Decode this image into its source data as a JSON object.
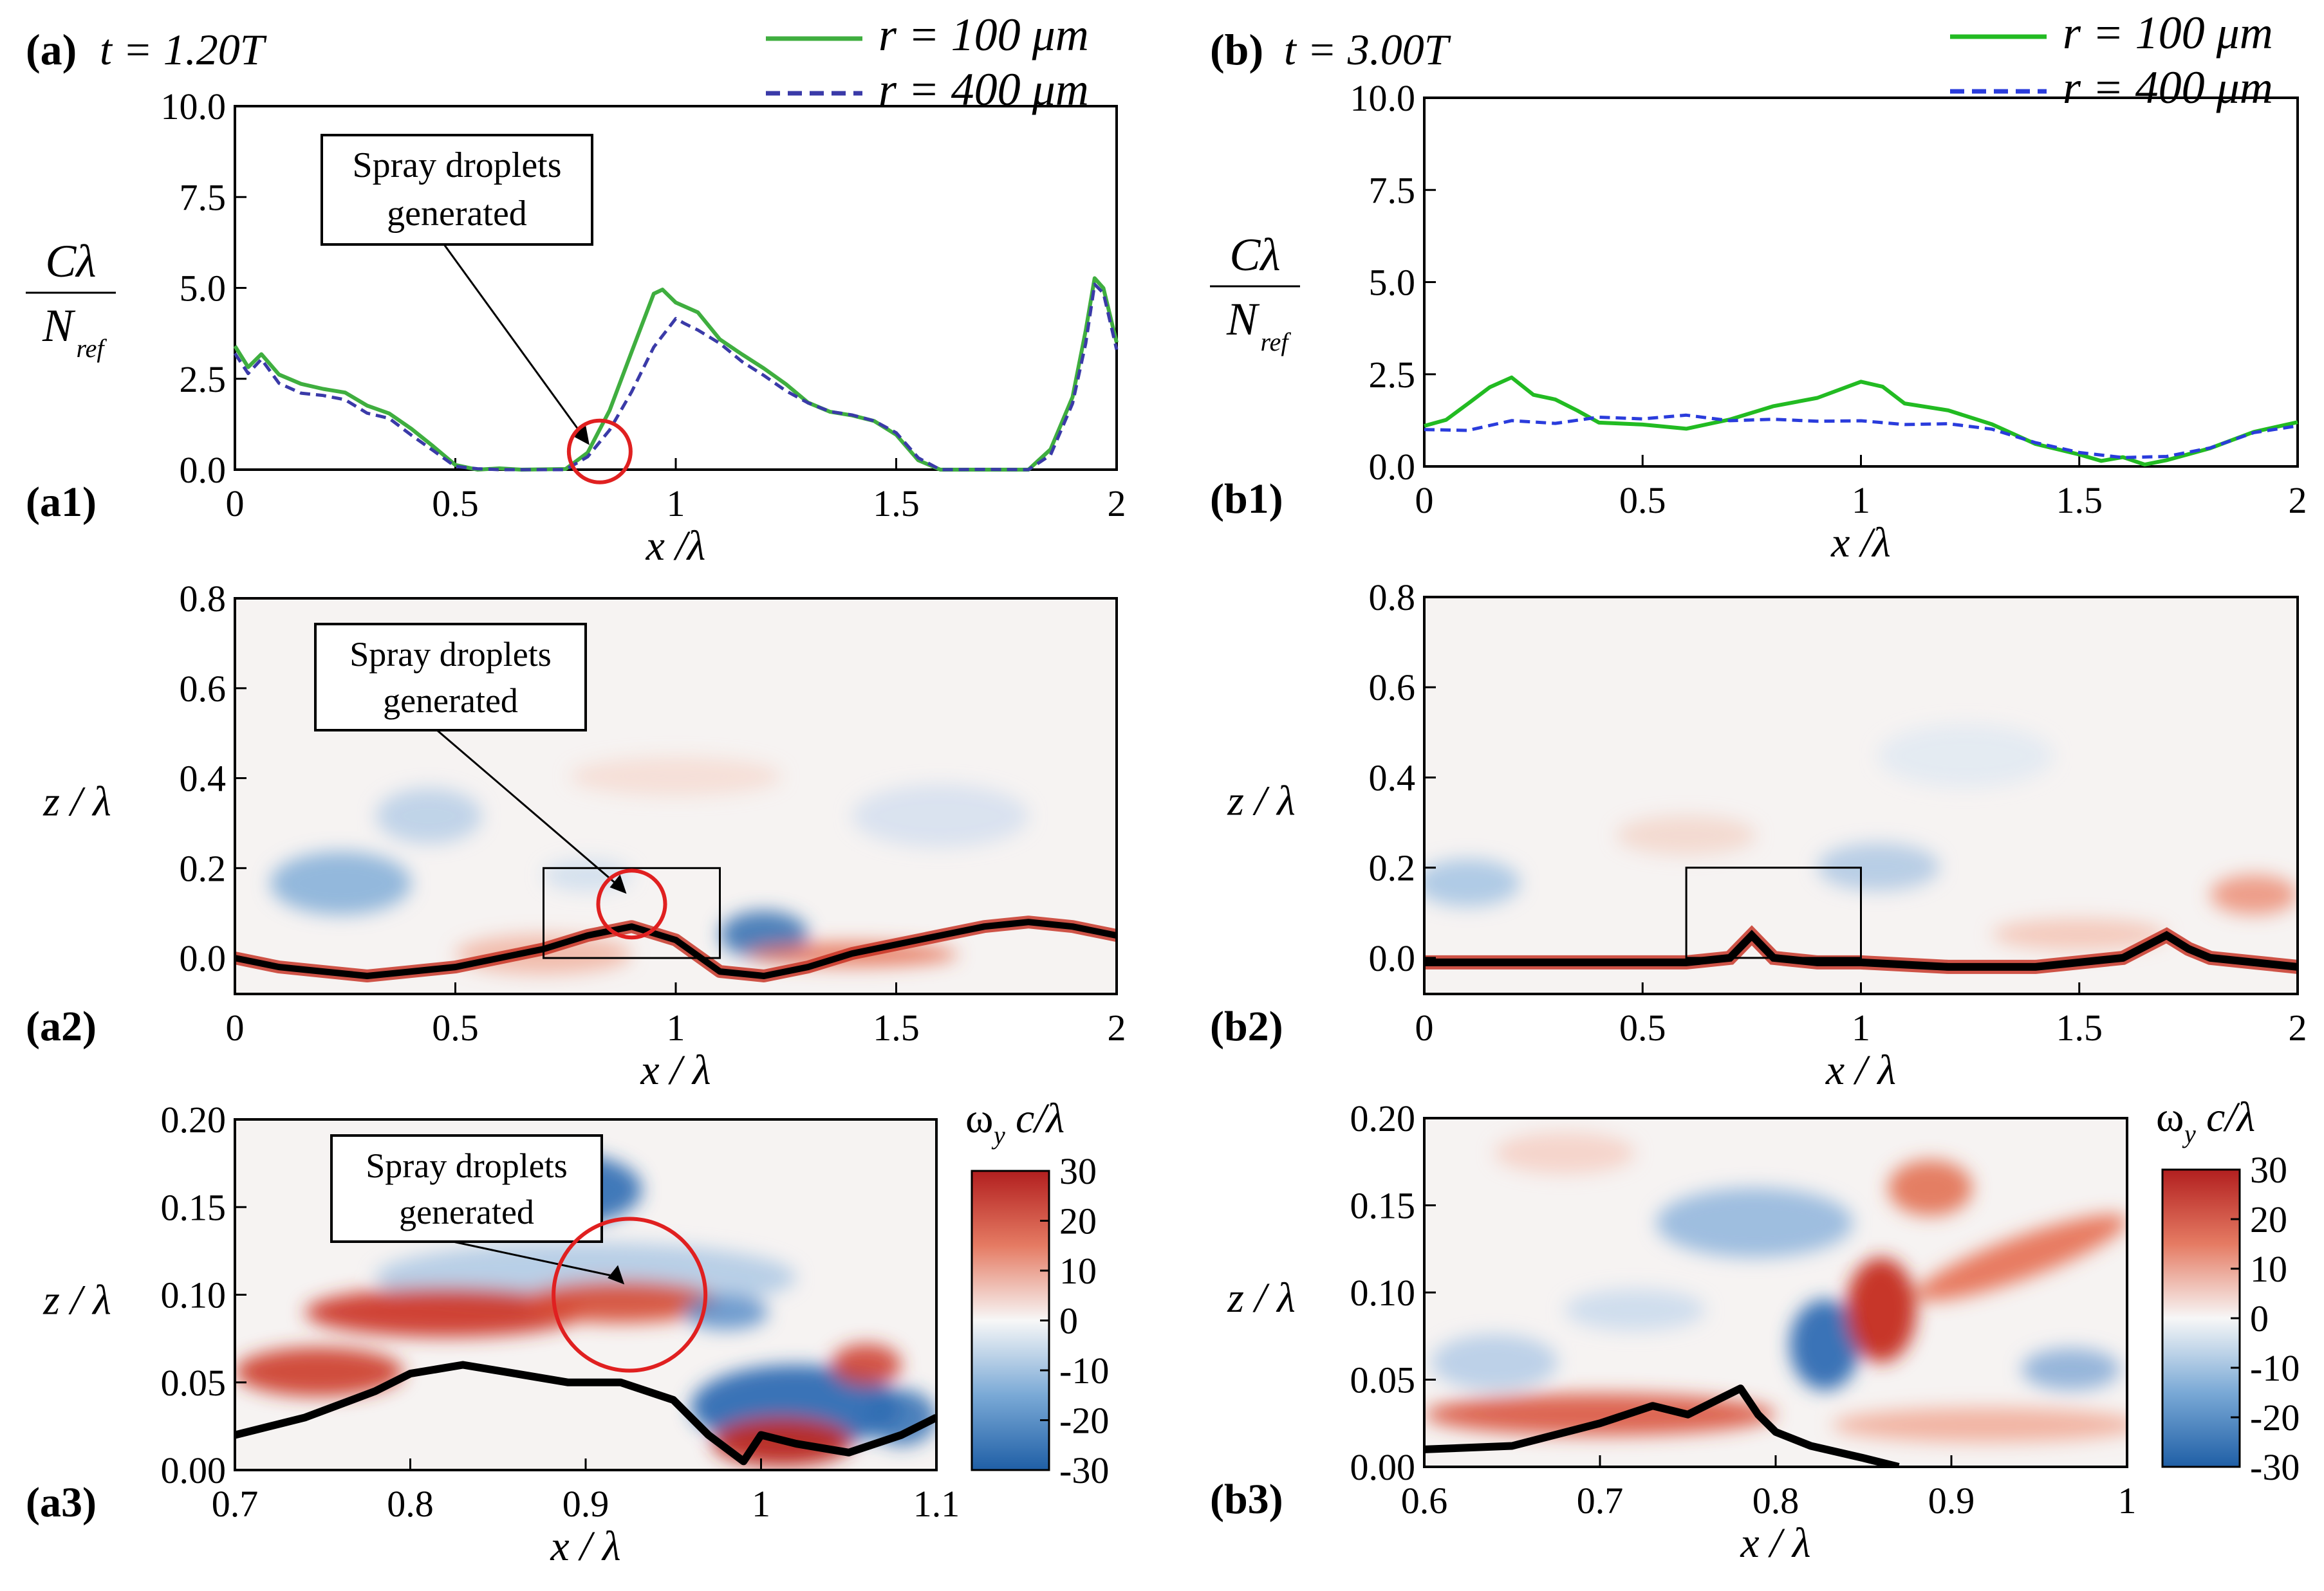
{
  "chart_data": [
    {
      "id": "a1",
      "type": "line",
      "panel_label": "(a1)",
      "header": {
        "letter": "(a)",
        "time": "t = 1.20T"
      },
      "ylabel": {
        "num": "Cλ",
        "den_main": "N",
        "den_sub": "ref"
      },
      "xlabel": "x /λ",
      "xlim": [
        0,
        2
      ],
      "ylim": [
        0,
        10
      ],
      "xticks": [
        "0",
        "0.5",
        "1",
        "1.5",
        "2"
      ],
      "yticks": [
        "0.0",
        "2.5",
        "5.0",
        "7.5",
        "10.0"
      ],
      "annotation": {
        "lines": [
          "Spray droplets",
          "generated"
        ],
        "target": [
          0.81,
          0.5
        ]
      },
      "series": [
        {
          "name": "r = 100 μm",
          "color": "#3fae3f",
          "style": "solid",
          "x": [
            0,
            0.03,
            0.06,
            0.1,
            0.15,
            0.2,
            0.25,
            0.3,
            0.35,
            0.4,
            0.45,
            0.5,
            0.55,
            0.6,
            0.65,
            0.7,
            0.75,
            0.8,
            0.85,
            0.9,
            0.95,
            0.97,
            1.0,
            1.05,
            1.1,
            1.15,
            1.2,
            1.25,
            1.3,
            1.35,
            1.4,
            1.45,
            1.5,
            1.55,
            1.6,
            1.7,
            1.8,
            1.85,
            1.9,
            1.93,
            1.95,
            1.97,
            2.0
          ],
          "y": [
            3.4,
            2.8,
            3.2,
            2.6,
            2.3,
            2.2,
            2.1,
            1.8,
            1.5,
            1.1,
            0.6,
            0.1,
            0.0,
            0.0,
            0.0,
            0.0,
            0.05,
            0.5,
            1.6,
            3.2,
            4.8,
            5.0,
            4.6,
            4.3,
            3.6,
            3.2,
            2.8,
            2.3,
            1.8,
            1.6,
            1.5,
            1.3,
            1.0,
            0.3,
            0.0,
            0.0,
            0.0,
            0.5,
            2.0,
            3.8,
            5.3,
            5.0,
            3.5
          ]
        },
        {
          "name": "r = 400 μm",
          "color": "#3a3aa8",
          "style": "dashed",
          "x": [
            0,
            0.03,
            0.06,
            0.1,
            0.15,
            0.2,
            0.25,
            0.3,
            0.35,
            0.4,
            0.45,
            0.5,
            0.55,
            0.6,
            0.65,
            0.7,
            0.75,
            0.8,
            0.85,
            0.9,
            0.95,
            1.0,
            1.02,
            1.05,
            1.1,
            1.15,
            1.2,
            1.25,
            1.3,
            1.35,
            1.4,
            1.45,
            1.5,
            1.55,
            1.6,
            1.7,
            1.8,
            1.85,
            1.9,
            1.93,
            1.95,
            1.97,
            2.0
          ],
          "y": [
            3.2,
            2.6,
            3.0,
            2.4,
            2.1,
            2.0,
            1.9,
            1.6,
            1.4,
            1.0,
            0.5,
            0.1,
            0.0,
            0.0,
            0.0,
            0.0,
            0.0,
            0.3,
            1.1,
            2.2,
            3.4,
            4.2,
            4.0,
            3.9,
            3.5,
            3.0,
            2.6,
            2.2,
            1.8,
            1.6,
            1.5,
            1.3,
            1.0,
            0.3,
            0.0,
            0.0,
            0.0,
            0.4,
            1.8,
            3.5,
            5.1,
            4.8,
            3.3
          ]
        }
      ]
    },
    {
      "id": "b1",
      "type": "line",
      "panel_label": "(b1)",
      "header": {
        "letter": "(b)",
        "time": "t = 3.00T"
      },
      "ylabel": {
        "num": "Cλ",
        "den_main": "N",
        "den_sub": "ref"
      },
      "xlabel": "x /λ",
      "xlim": [
        0,
        2
      ],
      "ylim": [
        0,
        10
      ],
      "xticks": [
        "0",
        "0.5",
        "1",
        "1.5",
        "2"
      ],
      "yticks": [
        "0.0",
        "2.5",
        "5.0",
        "7.5",
        "10.0"
      ],
      "series": [
        {
          "name": "r = 100 μm",
          "color": "#22bb22",
          "style": "solid",
          "x": [
            0,
            0.05,
            0.1,
            0.15,
            0.2,
            0.25,
            0.3,
            0.35,
            0.4,
            0.5,
            0.6,
            0.7,
            0.8,
            0.9,
            1.0,
            1.05,
            1.1,
            1.2,
            1.3,
            1.4,
            1.5,
            1.55,
            1.6,
            1.65,
            1.7,
            1.8,
            1.9,
            2.0
          ],
          "y": [
            1.1,
            1.3,
            1.7,
            2.1,
            2.4,
            2.0,
            1.8,
            1.5,
            1.2,
            1.1,
            1.0,
            1.3,
            1.6,
            1.8,
            2.3,
            2.2,
            1.7,
            1.5,
            1.1,
            0.6,
            0.3,
            0.2,
            0.2,
            0.1,
            0.2,
            0.5,
            0.9,
            1.2
          ]
        },
        {
          "name": "r = 400 μm",
          "color": "#2a3cdc",
          "style": "dashed",
          "x": [
            0,
            0.1,
            0.2,
            0.3,
            0.4,
            0.5,
            0.6,
            0.7,
            0.8,
            0.9,
            1.0,
            1.1,
            1.2,
            1.3,
            1.4,
            1.5,
            1.6,
            1.7,
            1.8,
            1.9,
            2.0
          ],
          "y": [
            1.0,
            1.0,
            1.2,
            1.2,
            1.3,
            1.3,
            1.4,
            1.3,
            1.3,
            1.2,
            1.2,
            1.1,
            1.1,
            1.0,
            0.6,
            0.4,
            0.3,
            0.3,
            0.5,
            0.9,
            1.1
          ]
        }
      ]
    },
    {
      "id": "a2",
      "type": "heatmap",
      "panel_label": "(a2)",
      "xlabel": "x / λ",
      "ylabel": "z / λ",
      "xlim": [
        0,
        2
      ],
      "ylim": [
        -0.08,
        0.8
      ],
      "xticks": [
        "0",
        "0.5",
        "1",
        "1.5",
        "2"
      ],
      "yticks": [
        "0.0",
        "0.2",
        "0.4",
        "0.6",
        "0.8"
      ],
      "annotation": {
        "lines": [
          "Spray droplets",
          "generated"
        ],
        "target": [
          0.9,
          0.12
        ]
      },
      "surface": {
        "x": [
          0,
          0.1,
          0.2,
          0.3,
          0.4,
          0.5,
          0.6,
          0.7,
          0.8,
          0.9,
          1.0,
          1.1,
          1.2,
          1.3,
          1.4,
          1.5,
          1.6,
          1.7,
          1.8,
          1.9,
          2.0
        ],
        "z": [
          0.0,
          -0.02,
          -0.03,
          -0.04,
          -0.03,
          -0.02,
          0.0,
          0.02,
          0.05,
          0.07,
          0.04,
          -0.03,
          -0.04,
          -0.02,
          0.01,
          0.03,
          0.05,
          0.07,
          0.08,
          0.07,
          0.05
        ]
      },
      "zoom_box": {
        "x": [
          0.7,
          1.1
        ],
        "z": [
          0.0,
          0.2
        ]
      }
    },
    {
      "id": "b2",
      "type": "heatmap",
      "panel_label": "(b2)",
      "xlabel": "x / λ",
      "ylabel": "z / λ",
      "xlim": [
        0,
        2
      ],
      "ylim": [
        -0.08,
        0.8
      ],
      "xticks": [
        "0",
        "0.5",
        "1",
        "1.5",
        "2"
      ],
      "yticks": [
        "0.0",
        "0.2",
        "0.4",
        "0.6",
        "0.8"
      ],
      "surface": {
        "x": [
          0,
          0.2,
          0.4,
          0.6,
          0.7,
          0.75,
          0.8,
          0.9,
          1.0,
          1.2,
          1.4,
          1.6,
          1.7,
          1.75,
          1.8,
          1.9,
          2.0
        ],
        "z": [
          -0.01,
          -0.01,
          -0.01,
          -0.01,
          0.0,
          0.05,
          0.0,
          -0.01,
          -0.01,
          -0.02,
          -0.02,
          0.0,
          0.05,
          0.02,
          0.0,
          -0.01,
          -0.02
        ]
      },
      "zoom_box": {
        "x": [
          0.6,
          1.0
        ],
        "z": [
          0.0,
          0.2
        ]
      }
    },
    {
      "id": "a3",
      "type": "heatmap",
      "panel_label": "(a3)",
      "xlabel": "x / λ",
      "ylabel": "z / λ",
      "xlim": [
        0.7,
        1.1
      ],
      "ylim": [
        0,
        0.2
      ],
      "xticks": [
        "0.7",
        "0.8",
        "0.9",
        "1",
        "1.1"
      ],
      "yticks": [
        "0.00",
        "0.05",
        "0.10",
        "0.15",
        "0.20"
      ],
      "annotation": {
        "lines": [
          "Spray droplets",
          "generated"
        ],
        "target": [
          0.925,
          0.1
        ]
      },
      "colorbar": {
        "label_main": "ω",
        "label_sub": "y",
        "label_rest": "c/λ",
        "range": [
          -30,
          30
        ],
        "ticks": [
          "30",
          "20",
          "10",
          "0",
          "-10",
          "-20",
          "-30"
        ]
      }
    },
    {
      "id": "b3",
      "type": "heatmap",
      "panel_label": "(b3)",
      "xlabel": "x / λ",
      "ylabel": "z / λ",
      "xlim": [
        0.6,
        1.0
      ],
      "ylim": [
        0,
        0.2
      ],
      "xticks": [
        "0.6",
        "0.7",
        "0.8",
        "0.9",
        "1"
      ],
      "yticks": [
        "0.00",
        "0.05",
        "0.10",
        "0.15",
        "0.20"
      ],
      "colorbar": {
        "label_main": "ω",
        "label_sub": "y",
        "label_rest": "c/λ",
        "range": [
          -30,
          30
        ],
        "ticks": [
          "30",
          "20",
          "10",
          "0",
          "-10",
          "-20",
          "-30"
        ]
      }
    }
  ]
}
